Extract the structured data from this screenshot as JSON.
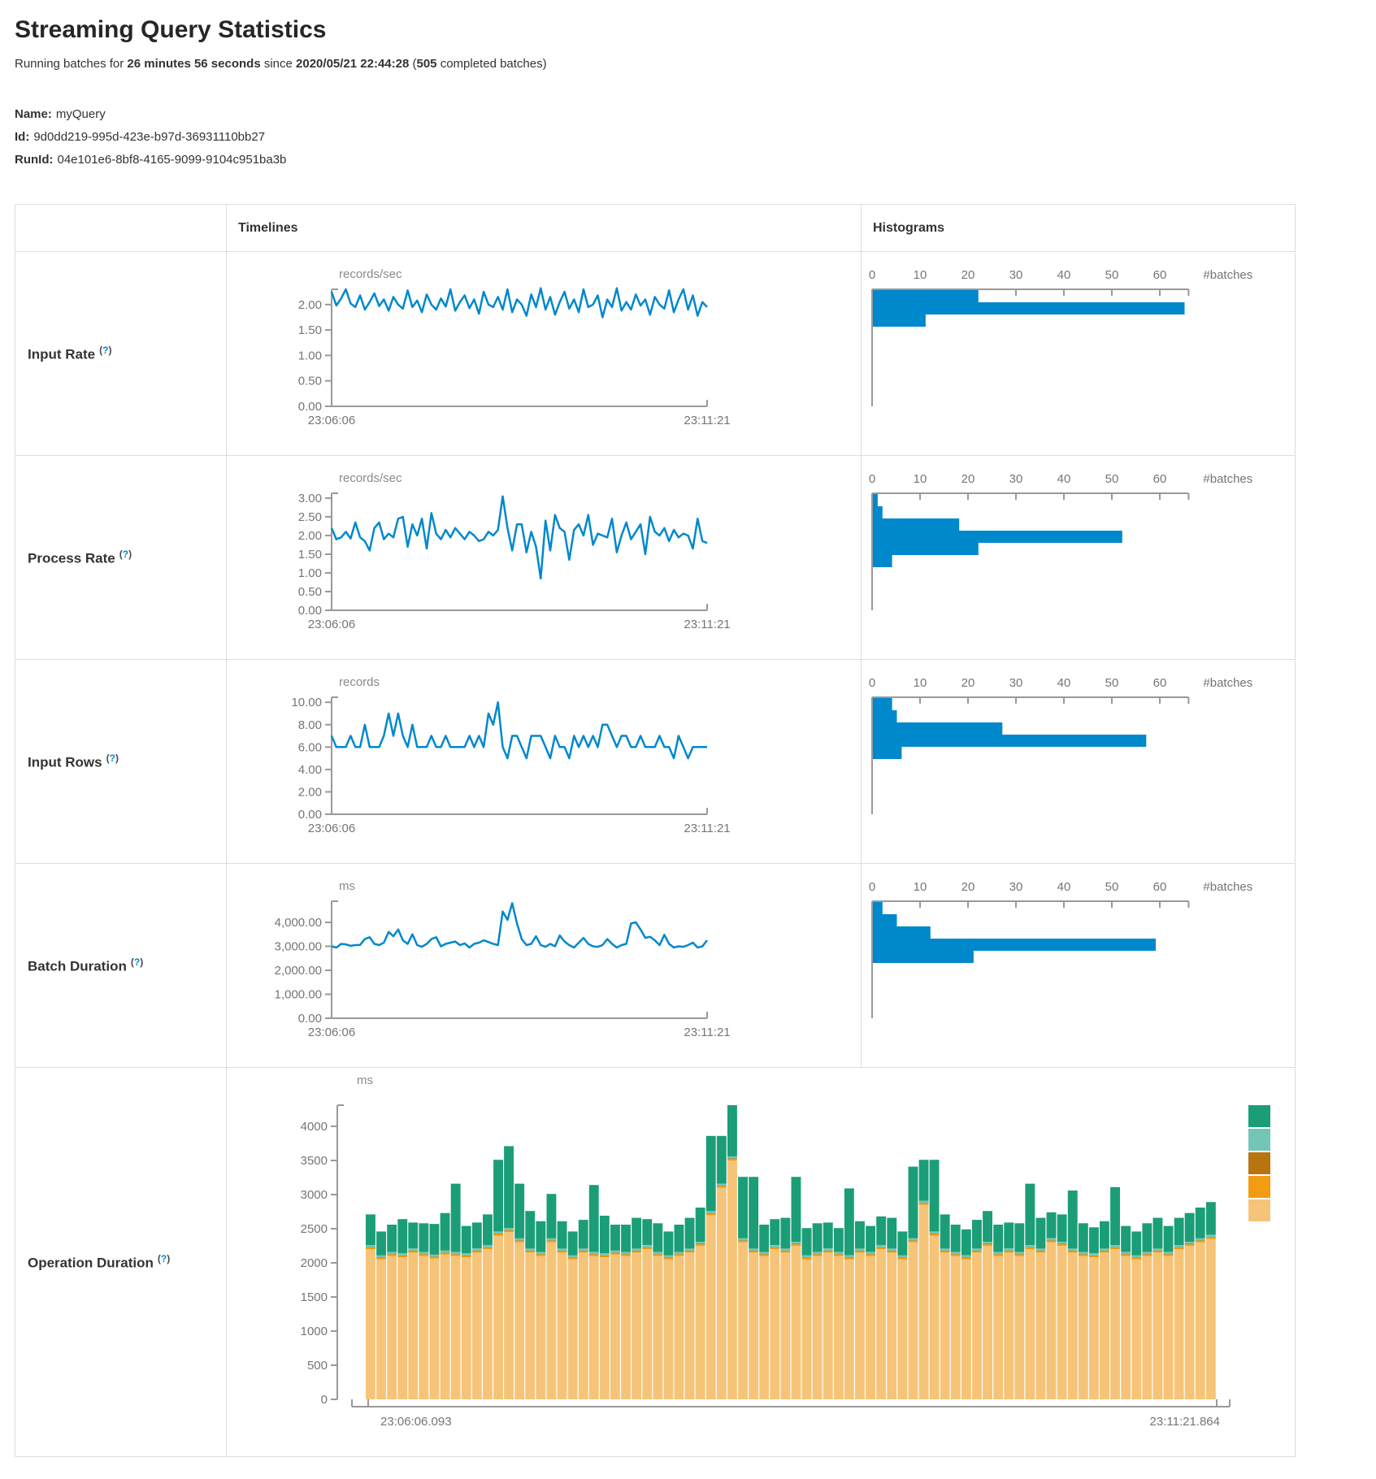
{
  "page": {
    "title": "Streaming Query Statistics",
    "running_line": {
      "prefix": "Running batches for ",
      "duration": "26 minutes 56 seconds",
      "since": " since ",
      "timestamp": "2020/05/21 22:44:28",
      "paren_open": " (",
      "batch_count": "505",
      "suffix": " completed batches)"
    },
    "name_label": "Name:",
    "name_value": "myQuery",
    "id_label": "Id:",
    "id_value": "9d0dd219-995d-423e-b97d-36931110bb27",
    "runid_label": "RunId:",
    "runid_value": "04e101e6-8bf8-4165-9099-9104c951ba3b"
  },
  "table": {
    "col_timelines": "Timelines",
    "col_histograms": "Histograms",
    "help_open": "(",
    "help_q": "?",
    "help_close": ")",
    "rows": [
      {
        "label": "Input Rate"
      },
      {
        "label": "Process Rate"
      },
      {
        "label": "Input Rows"
      },
      {
        "label": "Batch Duration"
      },
      {
        "label": "Operation Duration"
      }
    ]
  },
  "colors": {
    "series_blue": "#0088cc",
    "axis_gray": "#999999",
    "label_gray": "#757575",
    "unit_gray": "#8a8a8a",
    "legend": [
      "#1b9e77",
      "#73c6b6",
      "#b8740f",
      "#f39c12",
      "#f6c478"
    ],
    "stack_bottom_to_top": [
      "#f6c478",
      "#f39c12",
      "#b8740f",
      "#73c6b6",
      "#1b9e77"
    ]
  },
  "chart_data": [
    {
      "id": "input_rate_timeline",
      "type": "line",
      "title": "Input Rate timeline",
      "unit": "records/sec",
      "ymax": 2.3,
      "yticks": [
        {
          "v": 0,
          "label": "0.00"
        },
        {
          "v": 0.5,
          "label": "0.50"
        },
        {
          "v": 1,
          "label": "1.00"
        },
        {
          "v": 1.5,
          "label": "1.50"
        },
        {
          "v": 2,
          "label": "2.00"
        }
      ],
      "x_start_label": "23:06:06",
      "x_end_label": "23:11:21",
      "values": [
        2.25,
        1.98,
        2.12,
        2.3,
        2.02,
        1.95,
        2.18,
        1.9,
        2.05,
        2.22,
        1.97,
        2.1,
        1.88,
        2.15,
        2.0,
        1.92,
        2.28,
        1.95,
        2.08,
        1.85,
        2.2,
        2.0,
        1.9,
        2.12,
        1.96,
        2.3,
        1.88,
        2.05,
        2.18,
        1.93,
        2.1,
        1.82,
        2.25,
        2.0,
        1.95,
        2.15,
        1.9,
        2.3,
        1.85,
        2.1,
        2.0,
        1.78,
        2.2,
        1.95,
        2.32,
        1.9,
        2.15,
        1.8,
        2.05,
        2.25,
        1.92,
        2.1,
        1.85,
        2.3,
        1.95,
        2.0,
        2.18,
        1.75,
        2.1,
        1.95,
        2.32,
        1.88,
        2.05,
        1.9,
        2.2,
        1.98,
        2.1,
        1.8,
        2.15,
        2.0,
        1.92,
        2.28,
        1.85,
        2.1,
        2.3,
        1.9,
        2.18,
        1.78,
        2.05,
        1.95
      ]
    },
    {
      "id": "input_rate_histogram",
      "type": "hist",
      "title": "Input Rate histogram",
      "xlabel": "#batches",
      "xticks": [
        0,
        10,
        20,
        30,
        40,
        50,
        60
      ],
      "xmax": 66,
      "values": [
        22,
        65,
        11
      ]
    },
    {
      "id": "process_rate_timeline",
      "type": "line",
      "title": "Process Rate timeline",
      "unit": "records/sec",
      "ymax": 3.13,
      "yticks": [
        {
          "v": 0,
          "label": "0.00"
        },
        {
          "v": 0.5,
          "label": "0.50"
        },
        {
          "v": 1,
          "label": "1.00"
        },
        {
          "v": 1.5,
          "label": "1.50"
        },
        {
          "v": 2,
          "label": "2.00"
        },
        {
          "v": 2.5,
          "label": "2.50"
        },
        {
          "v": 3,
          "label": "3.00"
        }
      ],
      "x_start_label": "23:06:06",
      "x_end_label": "23:11:21",
      "values": [
        2.2,
        1.9,
        1.95,
        2.1,
        1.92,
        2.35,
        1.95,
        1.85,
        1.6,
        2.2,
        2.35,
        1.9,
        2.05,
        1.95,
        2.45,
        2.5,
        1.7,
        2.3,
        2.0,
        2.45,
        1.65,
        2.6,
        2.05,
        1.9,
        2.15,
        1.95,
        2.2,
        2.05,
        1.9,
        2.1,
        2.0,
        1.85,
        1.9,
        2.1,
        2.0,
        2.15,
        3.05,
        2.2,
        1.6,
        2.3,
        2.3,
        1.55,
        2.1,
        1.7,
        0.85,
        2.4,
        1.6,
        2.55,
        2.2,
        2.1,
        1.35,
        2.15,
        2.3,
        2.0,
        2.55,
        1.75,
        2.05,
        2.0,
        1.95,
        2.45,
        1.55,
        2.0,
        2.35,
        1.9,
        2.1,
        2.3,
        1.5,
        2.5,
        2.1,
        2.0,
        2.2,
        1.85,
        2.15,
        1.95,
        2.05,
        2.0,
        1.65,
        2.45,
        1.85,
        1.8
      ]
    },
    {
      "id": "process_rate_histogram",
      "type": "hist",
      "title": "Process Rate histogram",
      "xlabel": "#batches",
      "xticks": [
        0,
        10,
        20,
        30,
        40,
        50,
        60
      ],
      "xmax": 66,
      "values": [
        1,
        2,
        18,
        52,
        22,
        4
      ]
    },
    {
      "id": "input_rows_timeline",
      "type": "line",
      "title": "Input Rows timeline",
      "unit": "records",
      "ymax": 10.45,
      "yticks": [
        {
          "v": 0,
          "label": "0.00"
        },
        {
          "v": 2,
          "label": "2.00"
        },
        {
          "v": 4,
          "label": "4.00"
        },
        {
          "v": 6,
          "label": "6.00"
        },
        {
          "v": 8,
          "label": "8.00"
        },
        {
          "v": 10,
          "label": "10.00"
        }
      ],
      "x_start_label": "23:06:06",
      "x_end_label": "23:11:21",
      "values": [
        7,
        6,
        6,
        6,
        7,
        6,
        6,
        8,
        6,
        6,
        6,
        7,
        9,
        7,
        9,
        7,
        6,
        8,
        6,
        6,
        6,
        7,
        6,
        6,
        7,
        6,
        6,
        6,
        6,
        7,
        6,
        7,
        6,
        9,
        8,
        10,
        6,
        5,
        7,
        7,
        6,
        5,
        7,
        7,
        7,
        6,
        5,
        7,
        6,
        6,
        5,
        7,
        6,
        7,
        6,
        7,
        6,
        8,
        8,
        7,
        6,
        7,
        7,
        6,
        6,
        7,
        6,
        6,
        6,
        7,
        6,
        6,
        5,
        7,
        6,
        5,
        6,
        6,
        6,
        6
      ]
    },
    {
      "id": "input_rows_histogram",
      "type": "hist",
      "title": "Input Rows histogram",
      "xlabel": "#batches",
      "xticks": [
        0,
        10,
        20,
        30,
        40,
        50,
        60
      ],
      "xmax": 66,
      "values": [
        4,
        5,
        27,
        57,
        6
      ]
    },
    {
      "id": "batch_duration_timeline",
      "type": "line",
      "title": "Batch Duration timeline",
      "unit": "ms",
      "ymax": 4880,
      "yticks": [
        {
          "v": 0,
          "label": "0.00"
        },
        {
          "v": 1000,
          "label": "1,000.00"
        },
        {
          "v": 2000,
          "label": "2,000.00"
        },
        {
          "v": 3000,
          "label": "3,000.00"
        },
        {
          "v": 4000,
          "label": "4,000.00"
        }
      ],
      "x_start_label": "23:06:06",
      "x_end_label": "23:11:21",
      "values": [
        3000,
        2950,
        3100,
        3080,
        3020,
        3050,
        3060,
        3300,
        3380,
        3100,
        3050,
        3150,
        3600,
        3420,
        3700,
        3250,
        3100,
        3500,
        3050,
        2980,
        3100,
        3300,
        3380,
        3000,
        3100,
        3150,
        3200,
        3050,
        3120,
        2950,
        3100,
        3150,
        3250,
        3180,
        3100,
        3050,
        4450,
        4100,
        4800,
        3950,
        3300,
        3050,
        3100,
        3420,
        3050,
        2980,
        3100,
        3000,
        3450,
        3200,
        3050,
        2950,
        3150,
        3350,
        3100,
        3000,
        2980,
        3050,
        3300,
        3100,
        2950,
        3050,
        3100,
        3950,
        4000,
        3700,
        3350,
        3400,
        3250,
        3050,
        3480,
        3100,
        2950,
        3000,
        2980,
        3050,
        3150,
        2950,
        3000,
        3250
      ]
    },
    {
      "id": "batch_duration_histogram",
      "type": "hist",
      "title": "Batch Duration histogram",
      "xlabel": "#batches",
      "xticks": [
        0,
        10,
        20,
        30,
        40,
        50,
        60
      ],
      "xmax": 66,
      "values": [
        2,
        5,
        12,
        59,
        21
      ]
    },
    {
      "id": "operation_duration_stack",
      "type": "stack",
      "title": "Operation Duration stacked bars",
      "unit": "ms",
      "yticks": [
        {
          "v": 0,
          "label": "0"
        },
        {
          "v": 500,
          "label": "500"
        },
        {
          "v": 1000,
          "label": "1000"
        },
        {
          "v": 1500,
          "label": "1500"
        },
        {
          "v": 2000,
          "label": "2000"
        },
        {
          "v": 2500,
          "label": "2500"
        },
        {
          "v": 3000,
          "label": "3000"
        },
        {
          "v": 3500,
          "label": "3500"
        },
        {
          "v": 4000,
          "label": "4000"
        }
      ],
      "x_start_label": "23:06:06.093",
      "x_end_label": "23:11:21.864",
      "mid": [
        22,
        8,
        30
      ],
      "lower": [
        2200,
        2050,
        2100,
        2080,
        2150,
        2100,
        2060,
        2120,
        2100,
        2080,
        2150,
        2200,
        2400,
        2450,
        2300,
        2150,
        2100,
        2300,
        2150,
        2050,
        2150,
        2100,
        2080,
        2120,
        2100,
        2150,
        2200,
        2100,
        2050,
        2100,
        2150,
        2250,
        2700,
        3100,
        3500,
        2300,
        2150,
        2100,
        2200,
        2150,
        2250,
        2050,
        2100,
        2150,
        2100,
        2050,
        2150,
        2100,
        2200,
        2150,
        2050,
        2300,
        2850,
        2400,
        2150,
        2100,
        2050,
        2150,
        2250,
        2100,
        2150,
        2100,
        2200,
        2150,
        2300,
        2250,
        2150,
        2100,
        2080,
        2150,
        2200,
        2100,
        2050,
        2100,
        2150,
        2100,
        2200,
        2250,
        2300,
        2350
      ],
      "upper": [
        450,
        350,
        400,
        500,
        380,
        420,
        450,
        550,
        1000,
        400,
        380,
        450,
        1050,
        1200,
        800,
        550,
        450,
        650,
        400,
        350,
        420,
        980,
        550,
        380,
        400,
        450,
        380,
        420,
        350,
        400,
        450,
        500,
        1100,
        700,
        750,
        900,
        1050,
        400,
        380,
        450,
        950,
        400,
        420,
        380,
        350,
        980,
        400,
        380,
        420,
        450,
        350,
        1050,
        600,
        1050,
        500,
        400,
        380,
        420,
        450,
        400,
        380,
        420,
        900,
        450,
        380,
        400,
        850,
        420,
        380,
        400,
        850,
        380,
        350,
        420,
        450,
        380,
        400,
        420,
        450,
        480
      ]
    }
  ]
}
